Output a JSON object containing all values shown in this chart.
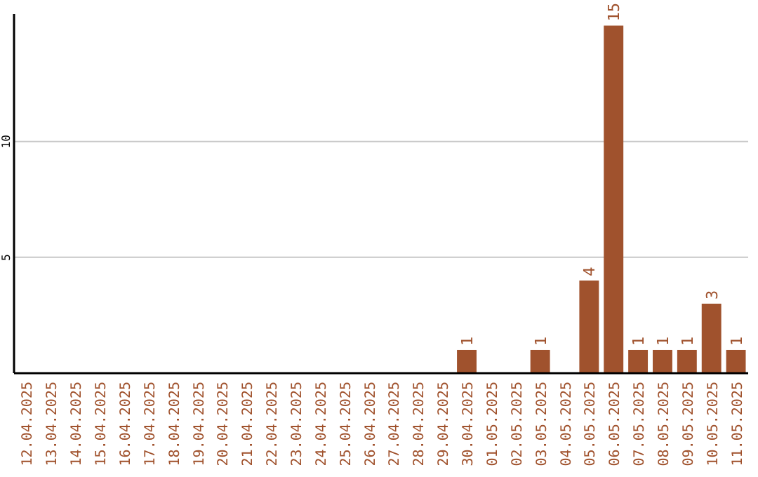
{
  "chart_data": {
    "type": "bar",
    "categories": [
      "12.04.2025",
      "13.04.2025",
      "14.04.2025",
      "15.04.2025",
      "16.04.2025",
      "17.04.2025",
      "18.04.2025",
      "19.04.2025",
      "20.04.2025",
      "21.04.2025",
      "22.04.2025",
      "23.04.2025",
      "24.04.2025",
      "25.04.2025",
      "26.04.2025",
      "27.04.2025",
      "28.04.2025",
      "29.04.2025",
      "30.04.2025",
      "01.05.2025",
      "02.05.2025",
      "03.05.2025",
      "04.05.2025",
      "05.05.2025",
      "06.05.2025",
      "07.05.2025",
      "08.05.2025",
      "09.05.2025",
      "10.05.2025",
      "11.05.2025"
    ],
    "values": [
      0,
      0,
      0,
      0,
      0,
      0,
      0,
      0,
      0,
      0,
      0,
      0,
      0,
      0,
      0,
      0,
      0,
      0,
      1,
      0,
      0,
      1,
      0,
      4,
      15,
      1,
      1,
      1,
      3,
      1
    ],
    "value_labels": [
      null,
      null,
      null,
      null,
      null,
      null,
      null,
      null,
      null,
      null,
      null,
      null,
      null,
      null,
      null,
      null,
      null,
      null,
      "1",
      null,
      null,
      "1",
      null,
      "4",
      "15",
      "1",
      "1",
      "1",
      "3",
      "1"
    ],
    "color": "#a0522d",
    "ylim": [
      0,
      15.5
    ],
    "yticks": [
      5,
      10
    ],
    "grid": "y"
  }
}
